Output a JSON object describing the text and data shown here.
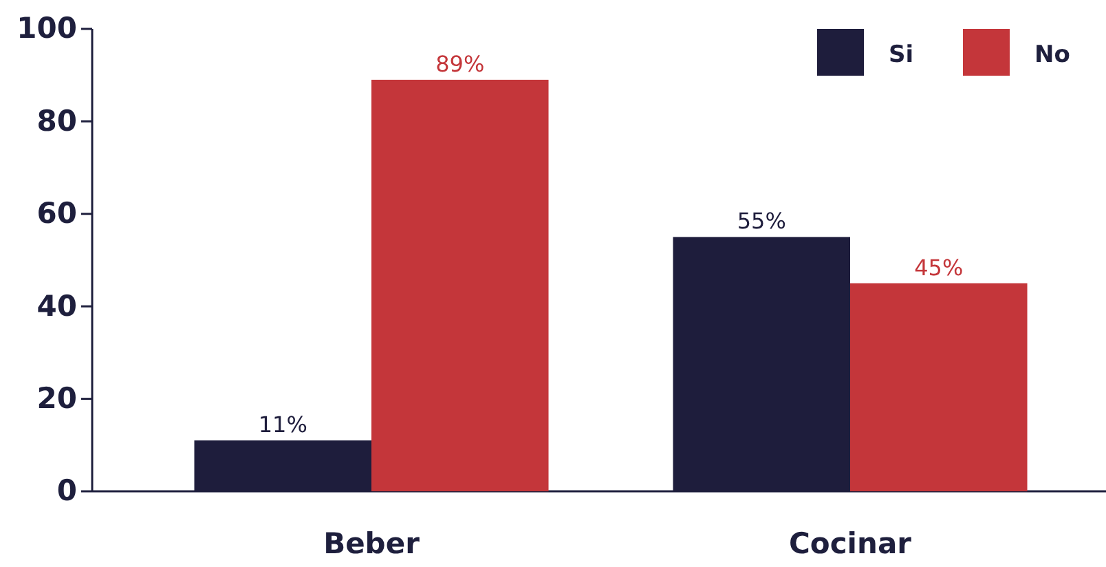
{
  "chart_data": {
    "type": "bar",
    "categories": [
      "Beber",
      "Cocinar"
    ],
    "series": [
      {
        "name": "Si",
        "color": "#1e1d3c",
        "values": [
          11,
          55
        ],
        "value_labels": [
          "11%",
          "55%"
        ]
      },
      {
        "name": "No",
        "color": "#c4363a",
        "values": [
          89,
          45
        ],
        "value_labels": [
          "89%",
          "45%"
        ]
      }
    ],
    "ylim": [
      0,
      100
    ],
    "yticks": [
      0,
      20,
      40,
      60,
      80,
      100
    ],
    "grid": false,
    "legend": "top right"
  }
}
